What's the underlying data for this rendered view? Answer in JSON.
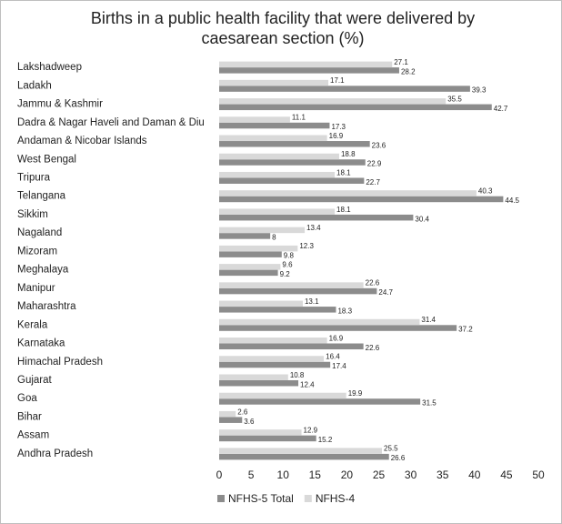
{
  "chart_data": {
    "type": "hbar",
    "title": "Births in a public health facility that were delivered by caesarean section (%)",
    "categories": [
      "Lakshadweep",
      "Ladakh",
      "Jammu & Kashmir",
      "Dadra & Nagar Haveli and Daman & Diu",
      "Andaman & Nicobar Islands",
      "West Bengal",
      "Tripura",
      "Telangana",
      "Sikkim",
      "Nagaland",
      "Mizoram",
      "Meghalaya",
      "Manipur",
      "Maharashtra",
      "Kerala",
      "Karnataka",
      "Himachal Pradesh",
      "Gujarat",
      "Goa",
      "Bihar",
      "Assam",
      "Andhra Pradesh"
    ],
    "series": [
      {
        "name": "NFHS-5 Total",
        "color": "#8c8c8c",
        "values": [
          28.2,
          39.3,
          42.7,
          17.3,
          23.6,
          22.9,
          22.7,
          44.5,
          30.4,
          8,
          9.8,
          9.2,
          24.7,
          18.3,
          37.2,
          22.6,
          17.4,
          12.4,
          31.5,
          3.6,
          15.2,
          26.6
        ]
      },
      {
        "name": "NFHS-4",
        "color": "#d9d9d9",
        "values": [
          27.1,
          17.1,
          35.5,
          11.1,
          16.9,
          18.8,
          18.1,
          40.3,
          18.1,
          13.4,
          12.3,
          9.6,
          22.6,
          13.1,
          31.4,
          16.9,
          16.4,
          10.8,
          19.9,
          2.6,
          12.9,
          25.5
        ]
      }
    ],
    "xlim": [
      0,
      50
    ],
    "xticks": [
      0,
      5,
      10,
      15,
      20,
      25,
      30,
      35,
      40,
      45,
      50
    ],
    "legend": "bottom"
  }
}
